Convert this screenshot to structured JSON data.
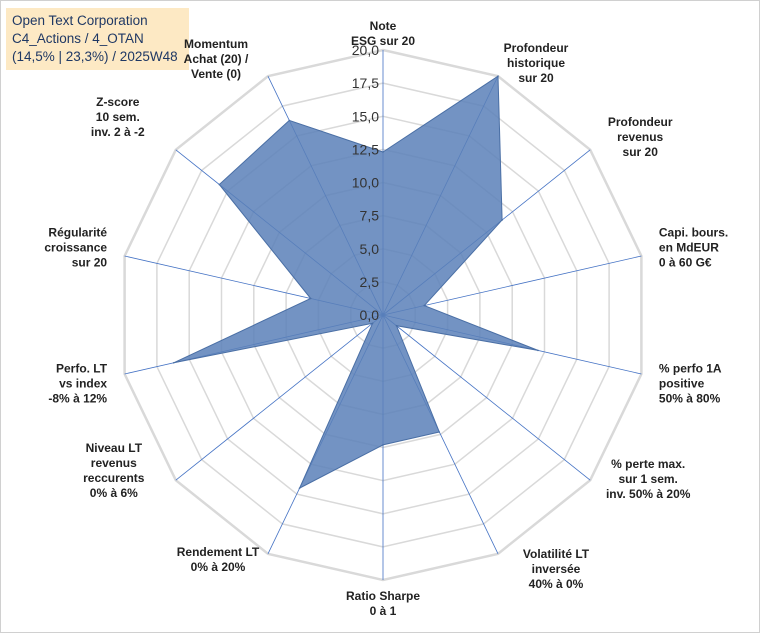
{
  "header": {
    "company": "Open Text Corporation",
    "category": "C4_Actions / 4_OTAN",
    "stats": "(14,5% | 23,3%) / 2025W48"
  },
  "colors": {
    "fill": "#5b80b8",
    "stroke": "#4a6fa5",
    "grid": "#d9d9d9",
    "spoke": "#4472c4",
    "title_bg": "#fde9c4"
  },
  "chart_data": {
    "type": "radar",
    "title": "Open Text Corporation",
    "rlim": [
      0,
      20
    ],
    "ticks": [
      "0,0",
      "2,5",
      "5,0",
      "7,5",
      "10,0",
      "12,5",
      "15,0",
      "17,5",
      "20,0"
    ],
    "tick_values": [
      0,
      2.5,
      5,
      7.5,
      10,
      12.5,
      15,
      17.5,
      20
    ],
    "axes": [
      {
        "lines": [
          "Note",
          "ESG sur 20"
        ]
      },
      {
        "lines": [
          "Profondeur",
          "historique",
          "sur 20"
        ]
      },
      {
        "lines": [
          "Profondeur",
          "revenus",
          "sur 20"
        ]
      },
      {
        "lines": [
          "Capi. bours.",
          "en MdEUR",
          "0 à 60 G€"
        ]
      },
      {
        "lines": [
          "% perfo 1A",
          "positive",
          "50% à 80%"
        ]
      },
      {
        "lines": [
          "% perte max.",
          "sur 1 sem.",
          "inv. 50% à 20%"
        ]
      },
      {
        "lines": [
          "Volatilité LT",
          "inversée",
          "40% à 0%"
        ]
      },
      {
        "lines": [
          "Ratio Sharpe",
          "0 à 1"
        ]
      },
      {
        "lines": [
          "Rendement LT",
          "0% à 20%"
        ]
      },
      {
        "lines": [
          "Niveau LT",
          "revenus",
          "reccurents",
          "0% à 6%"
        ]
      },
      {
        "lines": [
          "Perfo. LT",
          "vs index",
          "-8% à 12%"
        ]
      },
      {
        "lines": [
          "Régularité",
          "croissance",
          "sur 20"
        ]
      },
      {
        "lines": [
          "Z-score",
          "10 sem.",
          "inv. 2 à -2"
        ]
      },
      {
        "lines": [
          "Momentum",
          "Achat (20) /",
          "Vente (0)"
        ]
      }
    ],
    "series": [
      {
        "name": "Open Text Corporation",
        "values": [
          12.3,
          20.0,
          11.5,
          3.2,
          12.0,
          1.3,
          9.8,
          9.8,
          14.5,
          1.0,
          16.2,
          5.6,
          15.8,
          16.3
        ]
      }
    ]
  }
}
